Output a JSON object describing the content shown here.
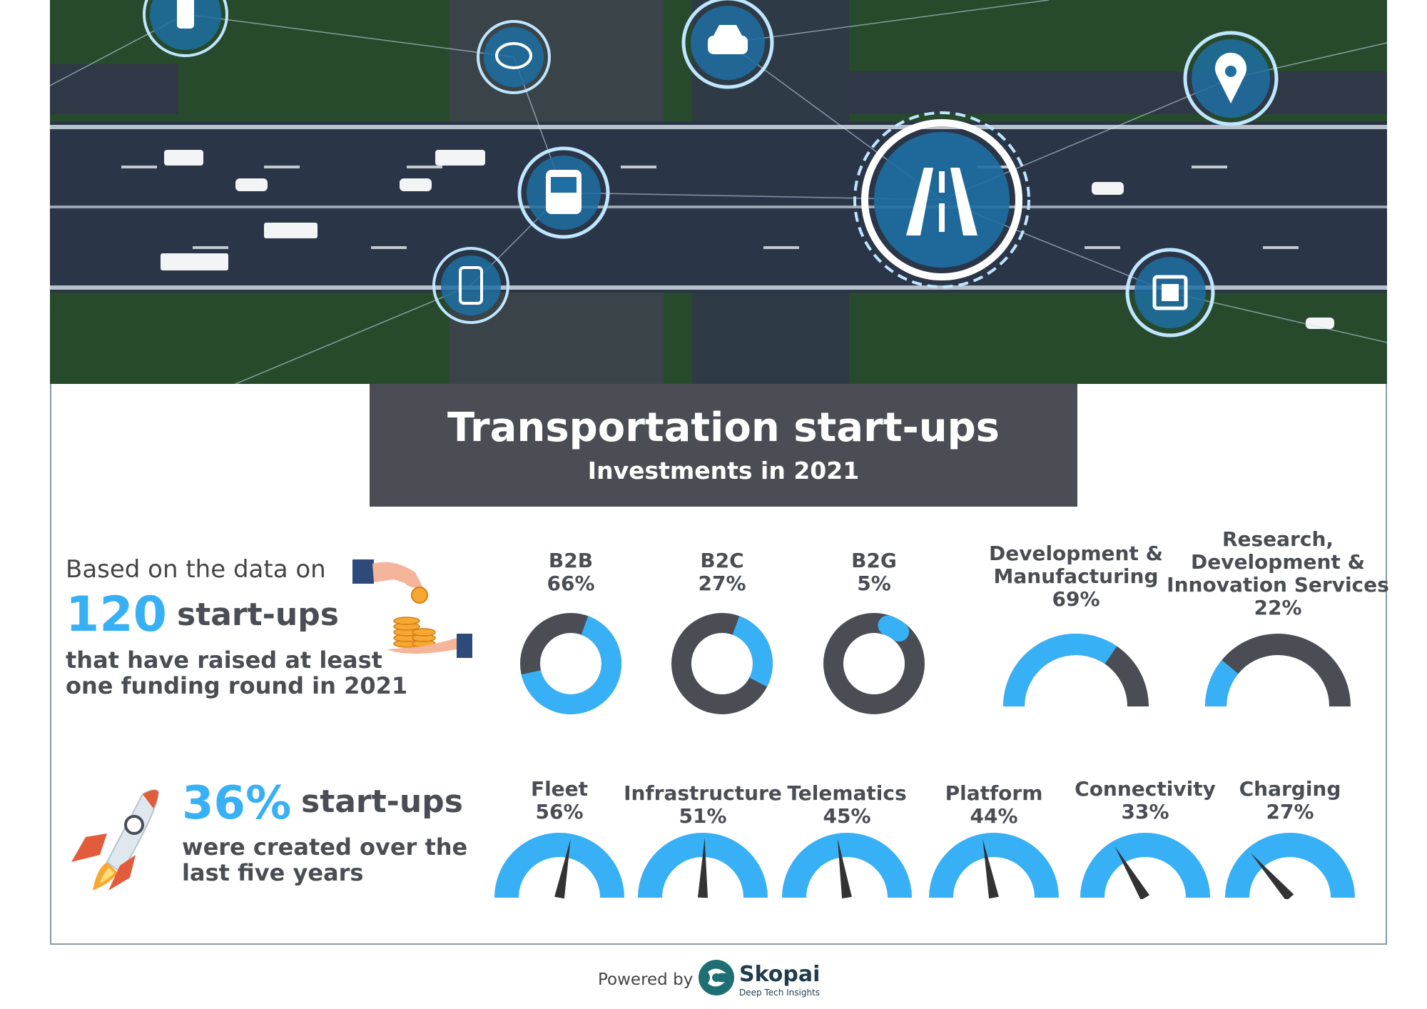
{
  "title": "Transportation start-ups",
  "subtitle": "Investments in 2021",
  "left": {
    "intro": "Based on the data on",
    "count": "120",
    "count_label": "start-ups",
    "desc_line1": "that have raised at least",
    "desc_line2": "one funding round in 2021",
    "pct": "36%",
    "pct_label": "start-ups",
    "pct_desc_line1": "were created over the",
    "pct_desc_line2": "last five years"
  },
  "footer": {
    "powered_by": "Powered by",
    "brand": "Skopai",
    "tagline": "Deep Tech Insights"
  },
  "colors": {
    "accent": "#38b0f5",
    "dark": "#4a4e54",
    "needle": "#333333"
  },
  "hero_icons": [
    "traffic-light-icon",
    "chat-icon",
    "car-icon",
    "location-pin-icon",
    "bus-icon",
    "road-icon",
    "smartphone-icon",
    "chip-icon"
  ],
  "chart_data": [
    {
      "type": "donut",
      "items": [
        {
          "name": "B2B",
          "label": "66%",
          "value": 66
        },
        {
          "name": "B2C",
          "label": "27%",
          "value": 27
        },
        {
          "name": "B2G",
          "label": "5%",
          "value": 5
        }
      ]
    },
    {
      "type": "semi-donut",
      "items": [
        {
          "name_lines": [
            "Development &",
            "Manufacturing"
          ],
          "label": "69%",
          "value": 69
        },
        {
          "name_lines": [
            "Research,",
            "Development &",
            "Innovation Services"
          ],
          "label": "22%",
          "value": 22
        }
      ]
    },
    {
      "type": "gauge",
      "items": [
        {
          "name": "Fleet",
          "label": "56%",
          "value": 56
        },
        {
          "name": "Infrastructure",
          "label": "51%",
          "value": 51
        },
        {
          "name": "Telematics",
          "label": "45%",
          "value": 45
        },
        {
          "name": "Platform",
          "label": "44%",
          "value": 44
        },
        {
          "name": "Connectivity",
          "label": "33%",
          "value": 33
        },
        {
          "name": "Charging",
          "label": "27%",
          "value": 27
        }
      ]
    }
  ]
}
